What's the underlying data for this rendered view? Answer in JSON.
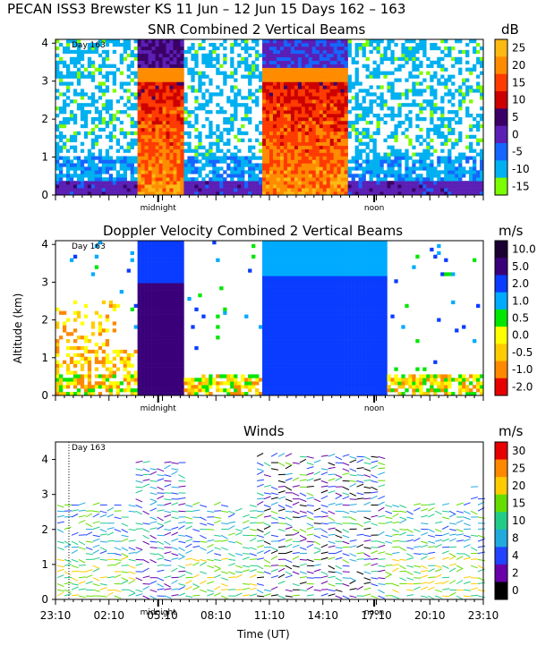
{
  "header": {
    "title": "PECAN ISS3 Brewster KS  11 Jun – 12 Jun 15 Days 162 – 163"
  },
  "chart_data": [
    {
      "type": "heatmap",
      "title": "SNR Combined 2 Vertical Beams",
      "unit": "dB",
      "ylabel": "Altitude (km)",
      "ylim": [
        0,
        4.1
      ],
      "yticks": [
        "0",
        "1",
        "2",
        "3",
        "4"
      ],
      "annotation": "Day 163",
      "markers": [
        "midnight",
        "noon"
      ],
      "colorbar": {
        "labels": [
          "25",
          "20",
          "15",
          "10",
          "5",
          "0",
          "-5",
          "-10",
          "-15"
        ],
        "colors": [
          "#fdb913",
          "#ff8c00",
          "#ff3b00",
          "#cc0000",
          "#3b0066",
          "#5b1fb5",
          "#1565ff",
          "#00b0f0",
          "#7cfc00"
        ]
      }
    },
    {
      "type": "heatmap",
      "title": "Doppler Velocity Combined 2 Vertical Beams",
      "unit": "m/s",
      "ylabel": "Altitude (km)",
      "ylim": [
        0,
        4.1
      ],
      "yticks": [
        "0",
        "1",
        "2",
        "3",
        "4"
      ],
      "annotation": "Day 163",
      "markers": [
        "midnight",
        "noon"
      ],
      "colorbar": {
        "labels": [
          "10.0",
          "5.0",
          "2.0",
          "1.0",
          "0.5",
          "0.0",
          "-0.5",
          "-1.0",
          "-2.0"
        ],
        "colors": [
          "#1a0033",
          "#3a007a",
          "#0a3cff",
          "#00aaff",
          "#00e600",
          "#ffff00",
          "#ffcc00",
          "#ff8800",
          "#e60000"
        ]
      }
    },
    {
      "type": "scatter",
      "title": "Winds",
      "unit": "m/s",
      "xlabel": "Time (UT)",
      "ylabel": "Altitude (km)",
      "ylim": [
        0,
        4.5
      ],
      "yticks": [
        "0",
        "1",
        "2",
        "3",
        "4"
      ],
      "xticks": [
        "23:10",
        "02:10",
        "05:10",
        "08:10",
        "11:10",
        "14:10",
        "17:10",
        "20:10",
        "23:10"
      ],
      "annotation": "Day 163",
      "markers": [
        "midnight",
        "noon"
      ],
      "colorbar": {
        "labels": [
          "30",
          "25",
          "20",
          "15",
          "10",
          "8",
          "4",
          "2",
          "0"
        ],
        "colors": [
          "#e60000",
          "#ff8800",
          "#ffcc00",
          "#66dd00",
          "#22cc88",
          "#22aadd",
          "#2244ff",
          "#6a00aa",
          "#000000"
        ]
      }
    }
  ]
}
